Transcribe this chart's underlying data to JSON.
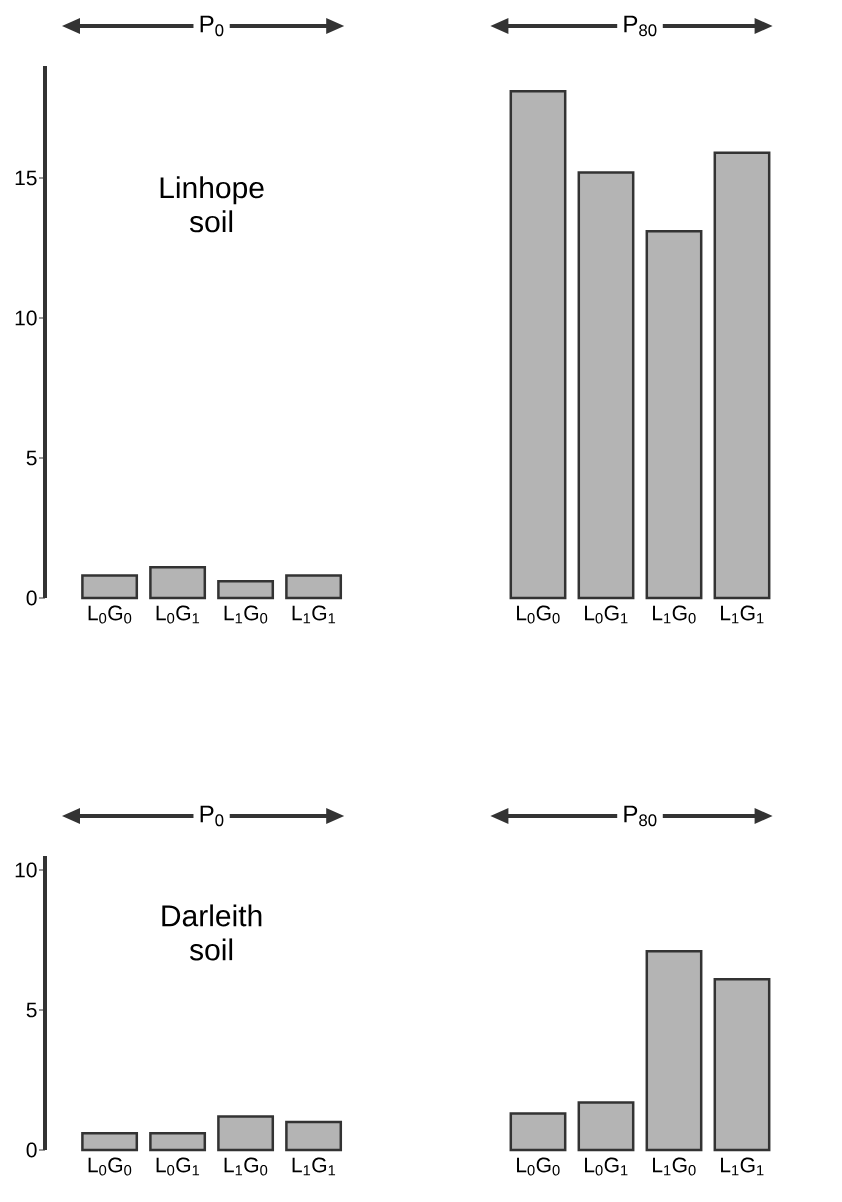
{
  "chart_data": [
    {
      "type": "bar",
      "categories": [
        "L$_{0}$G$_{0}$",
        "L$_{0}$G$_{1}$",
        "L$_{1}$G$_{0}$",
        "L$_{1}$G$_{1}$",
        "L$_{0}$G$_{0}$",
        "L$_{0}$G$_{1}$",
        "L$_{1}$G$_{0}$",
        "L$_{1}$G$_{1}$"
      ],
      "values": [
        0.8,
        1.1,
        0.6,
        0.8,
        18.1,
        15.2,
        13.1,
        15.9
      ],
      "color": "#b4b4b4",
      "ylim": [
        0,
        19
      ],
      "yticks": [
        0,
        5,
        10,
        15
      ],
      "annotations": [
        "P$_{0}$",
        "P$_{80}$",
        "Linhope soil"
      ]
    },
    {
      "type": "bar",
      "categories": [
        "L$_{0}$G$_{0}$",
        "L$_{0}$G$_{1}$",
        "L$_{1}$G$_{0}$",
        "L$_{1}$G$_{1}$",
        "L$_{0}$G$_{0}$",
        "L$_{0}$G$_{1}$",
        "L$_{1}$G$_{0}$",
        "L$_{1}$G$_{1}$"
      ],
      "values": [
        0.6,
        0.6,
        1.2,
        1.0,
        1.3,
        1.7,
        7.1,
        6.1
      ],
      "color": "#b4b4b4",
      "ylim": [
        0,
        10.5
      ],
      "yticks": [
        0,
        5,
        10
      ],
      "annotations": [
        "P$_{0}$",
        "P$_{80}$",
        "Darleith soil"
      ]
    }
  ]
}
